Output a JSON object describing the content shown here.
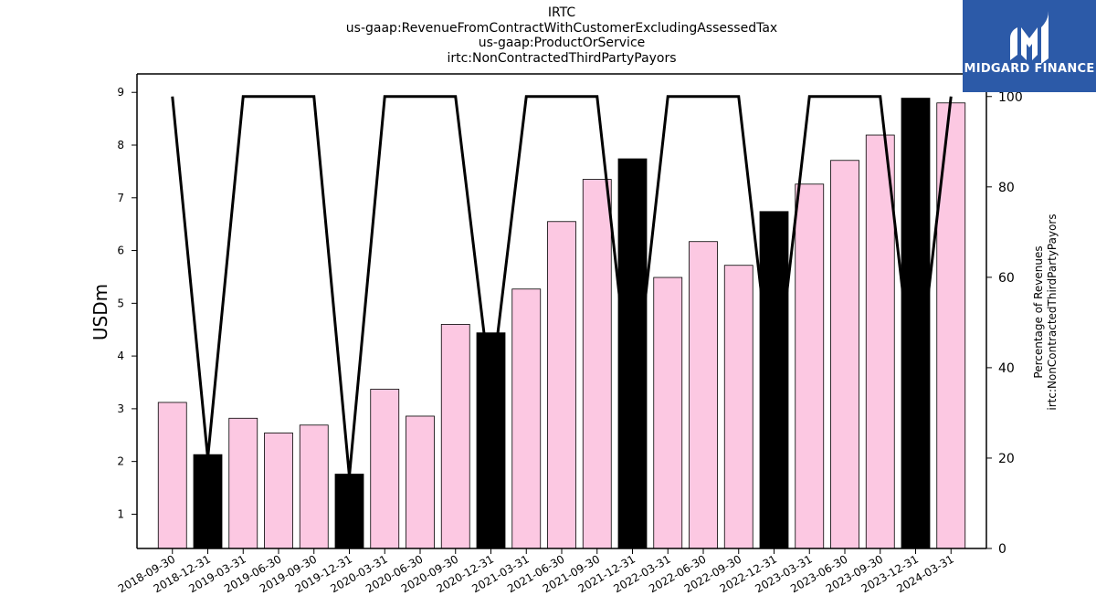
{
  "brand": {
    "name": "MIDGARD FINANCE",
    "bg_color": "#2c5aa8"
  },
  "chart_data": {
    "type": "bar",
    "title_lines": [
      "IRTC",
      "us-gaap:RevenueFromContractWithCustomerExcludingAssessedTax",
      "us-gaap:ProductOrService",
      "irtc:NonContractedThirdPartyPayors"
    ],
    "ylabel": "USDm",
    "ylabel_right_lines": [
      "Percentage of Revenues",
      "irtc:NonContractedThirdPartyPayors"
    ],
    "categories": [
      "2018-09-30",
      "2018-12-31",
      "2019-03-31",
      "2019-06-30",
      "2019-09-30",
      "2019-12-31",
      "2020-03-31",
      "2020-06-30",
      "2020-09-30",
      "2020-12-31",
      "2021-03-31",
      "2021-06-30",
      "2021-09-30",
      "2021-12-31",
      "2022-03-31",
      "2022-06-30",
      "2022-09-30",
      "2022-12-31",
      "2023-03-31",
      "2023-06-30",
      "2023-09-30",
      "2023-12-31",
      "2024-03-31"
    ],
    "values": [
      3.12,
      2.13,
      2.82,
      2.54,
      2.69,
      1.76,
      3.37,
      2.86,
      4.6,
      4.44,
      5.27,
      6.55,
      7.35,
      7.74,
      5.49,
      6.17,
      5.72,
      6.74,
      7.26,
      7.71,
      8.19,
      8.89,
      8.8
    ],
    "bar_colors": [
      "#fcc8e2",
      "#000000",
      "#fcc8e2",
      "#fcc8e2",
      "#fcc8e2",
      "#000000",
      "#fcc8e2",
      "#fcc8e2",
      "#fcc8e2",
      "#000000",
      "#fcc8e2",
      "#fcc8e2",
      "#fcc8e2",
      "#000000",
      "#fcc8e2",
      "#fcc8e2",
      "#fcc8e2",
      "#000000",
      "#fcc8e2",
      "#fcc8e2",
      "#fcc8e2",
      "#000000",
      "#fcc8e2"
    ],
    "line_values": [
      100,
      20,
      100,
      100,
      100,
      16,
      100,
      100,
      100,
      35,
      100,
      100,
      100,
      30,
      100,
      100,
      100,
      32,
      100,
      100,
      100,
      32,
      100
    ],
    "ylim": [
      0.35,
      9.35
    ],
    "yticks": [
      1,
      2,
      3,
      4,
      5,
      6,
      7,
      8,
      9
    ],
    "y2lim": [
      0,
      105
    ],
    "y2ticks": [
      0,
      20,
      40,
      60,
      80,
      100
    ],
    "line_color": "#000000",
    "grid": false
  }
}
